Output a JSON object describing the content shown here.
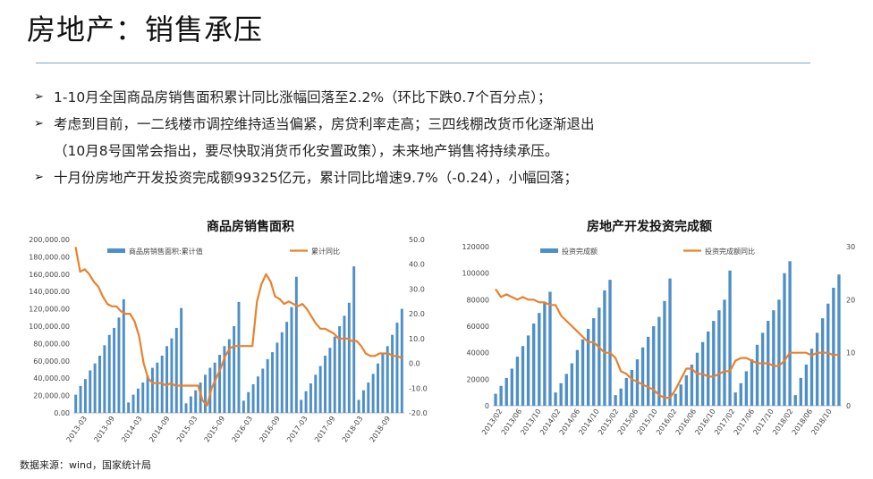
{
  "slide": {
    "title": "房地产：销售承压",
    "bullets": [
      {
        "arrow": "➢",
        "text": "1-10月全国商品房销售面积累计同比涨幅回落至2.2%（环比下跌0.7个百分点）；"
      },
      {
        "arrow": "➢",
        "text": "考虑到目前，一二线楼市调控维持适当偏紧，房贷利率走高；三四线棚改货币化逐渐退出"
      },
      {
        "arrow": "",
        "text": "（10月8号国常会指出，要尽快取消货币化安置政策），未来地产销售将持续承压。"
      },
      {
        "arrow": "➢",
        "text": "十月份房地产开发投资完成额99325亿元，累计同比增速9.7%（-0.24），小幅回落；"
      }
    ],
    "source": "数据来源：wind，国家统计局"
  },
  "chart_data": [
    {
      "type": "bar",
      "title": "商品房销售面积",
      "legend": [
        "商品房销售面积:累计值",
        "累计同比"
      ],
      "legend_position": "top",
      "colors": {
        "bar": "#4f8fc7",
        "line": "#e8822d"
      },
      "x_tick_labels": [
        "2013-03",
        "2013-09",
        "2014-03",
        "2014-09",
        "2015-03",
        "2015-09",
        "2016-03",
        "2016-09",
        "2017-03",
        "2017-09",
        "2018-03",
        "2018-09"
      ],
      "y_left": {
        "ylim": [
          0,
          200000
        ],
        "ticks": [
          "0.00",
          "20,000.00",
          "40,000.00",
          "60,000.00",
          "80,000.00",
          "100,000.00",
          "120,000.00",
          "140,000.00",
          "160,000.00",
          "180,000.00",
          "200,000.00"
        ]
      },
      "y_right": {
        "ylim": [
          -20,
          50
        ],
        "ticks": [
          "-20.0",
          "-10.0",
          "0.0",
          "10.0",
          "20.0",
          "30.0",
          "40.0",
          "50.0"
        ]
      },
      "grid": false,
      "bar_values": [
        21000,
        31000,
        39000,
        49000,
        57000,
        66000,
        78000,
        90000,
        98000,
        110000,
        131000,
        12000,
        21000,
        28000,
        35000,
        43000,
        52000,
        58000,
        66000,
        77000,
        86000,
        98000,
        121000,
        11000,
        19000,
        26000,
        35000,
        44000,
        52000,
        58000,
        67000,
        77000,
        85000,
        100000,
        128000,
        14000,
        24000,
        33000,
        42000,
        51000,
        62000,
        70000,
        81000,
        93000,
        105000,
        122000,
        157000,
        15000,
        25000,
        34000,
        44000,
        54000,
        66000,
        75000,
        88000,
        100000,
        112000,
        127000,
        169000,
        15000,
        26000,
        35000,
        45000,
        57000,
        68000,
        77000,
        90000,
        104000,
        120000
      ],
      "line_values": [
        47,
        37,
        38,
        36,
        33,
        31,
        27,
        24,
        23,
        23,
        21,
        20,
        20,
        17,
        11,
        0,
        -6,
        -8,
        -8,
        -8,
        -9,
        -8,
        -9,
        -9,
        -9,
        -9,
        -9,
        -9,
        -15,
        -17,
        -10,
        -6,
        -2,
        3,
        6,
        7,
        7,
        7,
        7,
        7,
        25,
        32,
        36,
        33,
        27,
        26,
        24,
        25,
        24,
        23,
        24,
        22,
        19,
        16,
        14,
        14,
        13,
        12,
        10,
        10,
        10,
        9,
        9,
        7,
        4,
        3,
        3,
        4,
        4,
        4,
        3,
        3,
        2
      ]
    },
    {
      "type": "bar",
      "title": "房地产开发投资完成额",
      "legend": [
        "投资完成额",
        "投资完成额同比"
      ],
      "legend_position": "top",
      "colors": {
        "bar": "#4f8fc7",
        "line": "#e8822d"
      },
      "x_tick_labels": [
        "2013/02",
        "2013/06",
        "2013/10",
        "2014/02",
        "2014/06",
        "2014/10",
        "2015/02",
        "2015/06",
        "2015/10",
        "2016/02",
        "2016/06",
        "2016/10",
        "2017/02",
        "2017/06",
        "2017/10",
        "2018/02",
        "2018/06",
        "2018/10"
      ],
      "y_left": {
        "ylim": [
          0,
          120000
        ],
        "ticks": [
          "0",
          "20000",
          "40000",
          "60000",
          "80000",
          "100000",
          "120000"
        ]
      },
      "y_right": {
        "ylim": [
          0,
          30
        ],
        "ticks": [
          "0",
          "10",
          "20",
          "30"
        ]
      },
      "grid": false,
      "bar_values": [
        9000,
        15000,
        21000,
        28000,
        37000,
        45000,
        53000,
        62000,
        70000,
        78000,
        86000,
        10000,
        17000,
        24000,
        32000,
        42000,
        50000,
        58000,
        66000,
        74000,
        87000,
        95000,
        8000,
        13000,
        21000,
        27000,
        35000,
        44000,
        52000,
        60000,
        67000,
        79000,
        96000,
        9000,
        16000,
        23000,
        31000,
        40000,
        48000,
        56000,
        64000,
        72000,
        80000,
        102000,
        10000,
        17000,
        26000,
        35000,
        46000,
        55000,
        64000,
        72000,
        80000,
        100000,
        109000,
        8000,
        21000,
        31000,
        43000,
        55000,
        66000,
        77000,
        89000,
        99000
      ],
      "line_values": [
        22,
        20.5,
        21,
        20.5,
        20,
        20.5,
        20,
        20,
        19.5,
        19.5,
        19,
        19,
        17,
        16,
        15,
        14,
        13,
        12,
        12,
        11,
        10,
        10,
        9,
        6.5,
        6,
        5,
        4.5,
        4,
        3.5,
        3,
        2,
        1.5,
        1.5,
        3,
        5,
        7,
        7,
        6,
        6,
        5.5,
        5.5,
        6,
        6.5,
        6.5,
        8.5,
        9,
        9,
        8.5,
        8,
        8,
        8,
        7.5,
        7.5,
        8.5,
        10,
        10,
        10,
        10,
        9.5,
        10,
        10,
        10,
        9.5,
        9.7
      ]
    }
  ]
}
